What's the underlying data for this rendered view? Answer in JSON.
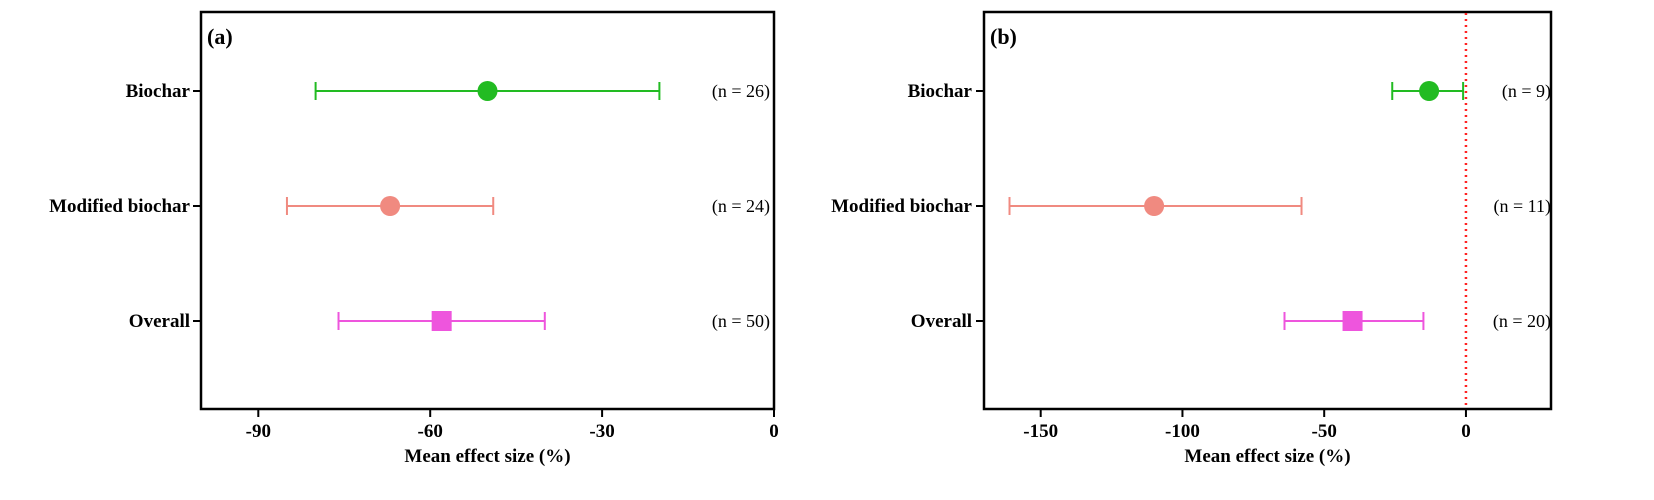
{
  "chart_data": [
    {
      "type": "forest",
      "panel_label": "(a)",
      "xlabel": "Mean effect size (%)",
      "xlim": [
        -100,
        0
      ],
      "xticks": [
        -90,
        -60,
        -30,
        0
      ],
      "categories": [
        "Biochar",
        "Modified biochar",
        "Overall"
      ],
      "reference_line": null,
      "series": [
        {
          "category": "Biochar",
          "mean": -50,
          "ci_low": -80,
          "ci_high": -20,
          "n_label": "(n = 26)",
          "marker": "circle",
          "color": "#22bb22"
        },
        {
          "category": "Modified biochar",
          "mean": -67,
          "ci_low": -85,
          "ci_high": -49,
          "n_label": "(n = 24)",
          "marker": "circle",
          "color": "#f08a80"
        },
        {
          "category": "Overall",
          "mean": -58,
          "ci_low": -76,
          "ci_high": -40,
          "n_label": "(n = 50)",
          "marker": "square",
          "color": "#ee55dd"
        }
      ]
    },
    {
      "type": "forest",
      "panel_label": "(b)",
      "xlabel": "Mean effect size (%)",
      "xlim": [
        -170,
        30
      ],
      "xticks": [
        -150,
        -100,
        -50,
        0
      ],
      "categories": [
        "Biochar",
        "Modified biochar",
        "Overall"
      ],
      "reference_line": {
        "x": 0,
        "style": "dotted",
        "color": "#ff2222"
      },
      "series": [
        {
          "category": "Biochar",
          "mean": -13,
          "ci_low": -26,
          "ci_high": -1,
          "n_label": "(n = 9)",
          "marker": "circle",
          "color": "#22bb22"
        },
        {
          "category": "Modified biochar",
          "mean": -110,
          "ci_low": -161,
          "ci_high": -58,
          "n_label": "(n = 11)",
          "marker": "circle",
          "color": "#f08a80"
        },
        {
          "category": "Overall",
          "mean": -40,
          "ci_low": -64,
          "ci_high": -15,
          "n_label": "(n = 20)",
          "marker": "square",
          "color": "#ee55dd"
        }
      ]
    }
  ]
}
